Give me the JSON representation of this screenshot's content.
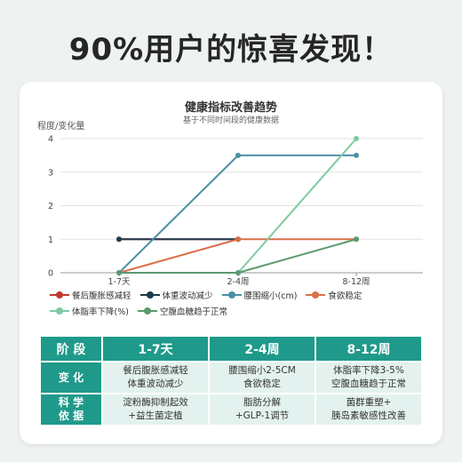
{
  "headline": "90%用户的惊喜发现！",
  "chart_data": {
    "type": "line",
    "title": "健康指标改善趋势",
    "subtitle": "基于不同时间段的健康数据",
    "ylabel": "程度/变化量",
    "xlabel": "",
    "categories": [
      "1-7天",
      "2-4周",
      "8-12周"
    ],
    "ylim": [
      0,
      4
    ],
    "yticks": [
      0,
      1,
      2,
      3,
      4
    ],
    "grid": true,
    "legend_position": "bottom",
    "series": [
      {
        "name": "餐后腹胀感减轻",
        "color": "#c0392b",
        "values": [
          1,
          1,
          null
        ]
      },
      {
        "name": "体重波动减少",
        "color": "#1f3a4d",
        "values": [
          1,
          1,
          null
        ]
      },
      {
        "name": "腰围缩小(cm)",
        "color": "#4a90a4",
        "values": [
          0,
          3.5,
          3.5
        ]
      },
      {
        "name": "食欲稳定",
        "color": "#d9704a",
        "values": [
          0,
          1,
          1
        ]
      },
      {
        "name": "体脂率下降(%)",
        "color": "#7ecba1",
        "values": [
          0,
          0,
          4
        ]
      },
      {
        "name": "空腹血糖趋于正常",
        "color": "#5a9a6e",
        "values": [
          0,
          0,
          1
        ]
      }
    ]
  },
  "table": {
    "headers": [
      "阶 段",
      "1-7天",
      "2-4周",
      "8-12周"
    ],
    "rows": [
      {
        "label": "变 化",
        "cells": [
          [
            "餐后腹胀感减轻",
            "体重波动减少"
          ],
          [
            "腰围缩小2-5CM",
            "食欲稳定"
          ],
          [
            "体脂率下降3-5%",
            "空腹血糖趋于正常"
          ]
        ]
      },
      {
        "label": "科 学\n依 据",
        "cells": [
          [
            "淀粉酶抑制起效",
            "+益生菌定植"
          ],
          [
            "脂肪分解",
            "+GLP-1调节"
          ],
          [
            "菌群重塑+",
            "胰岛素敏感性改善"
          ]
        ]
      }
    ]
  }
}
